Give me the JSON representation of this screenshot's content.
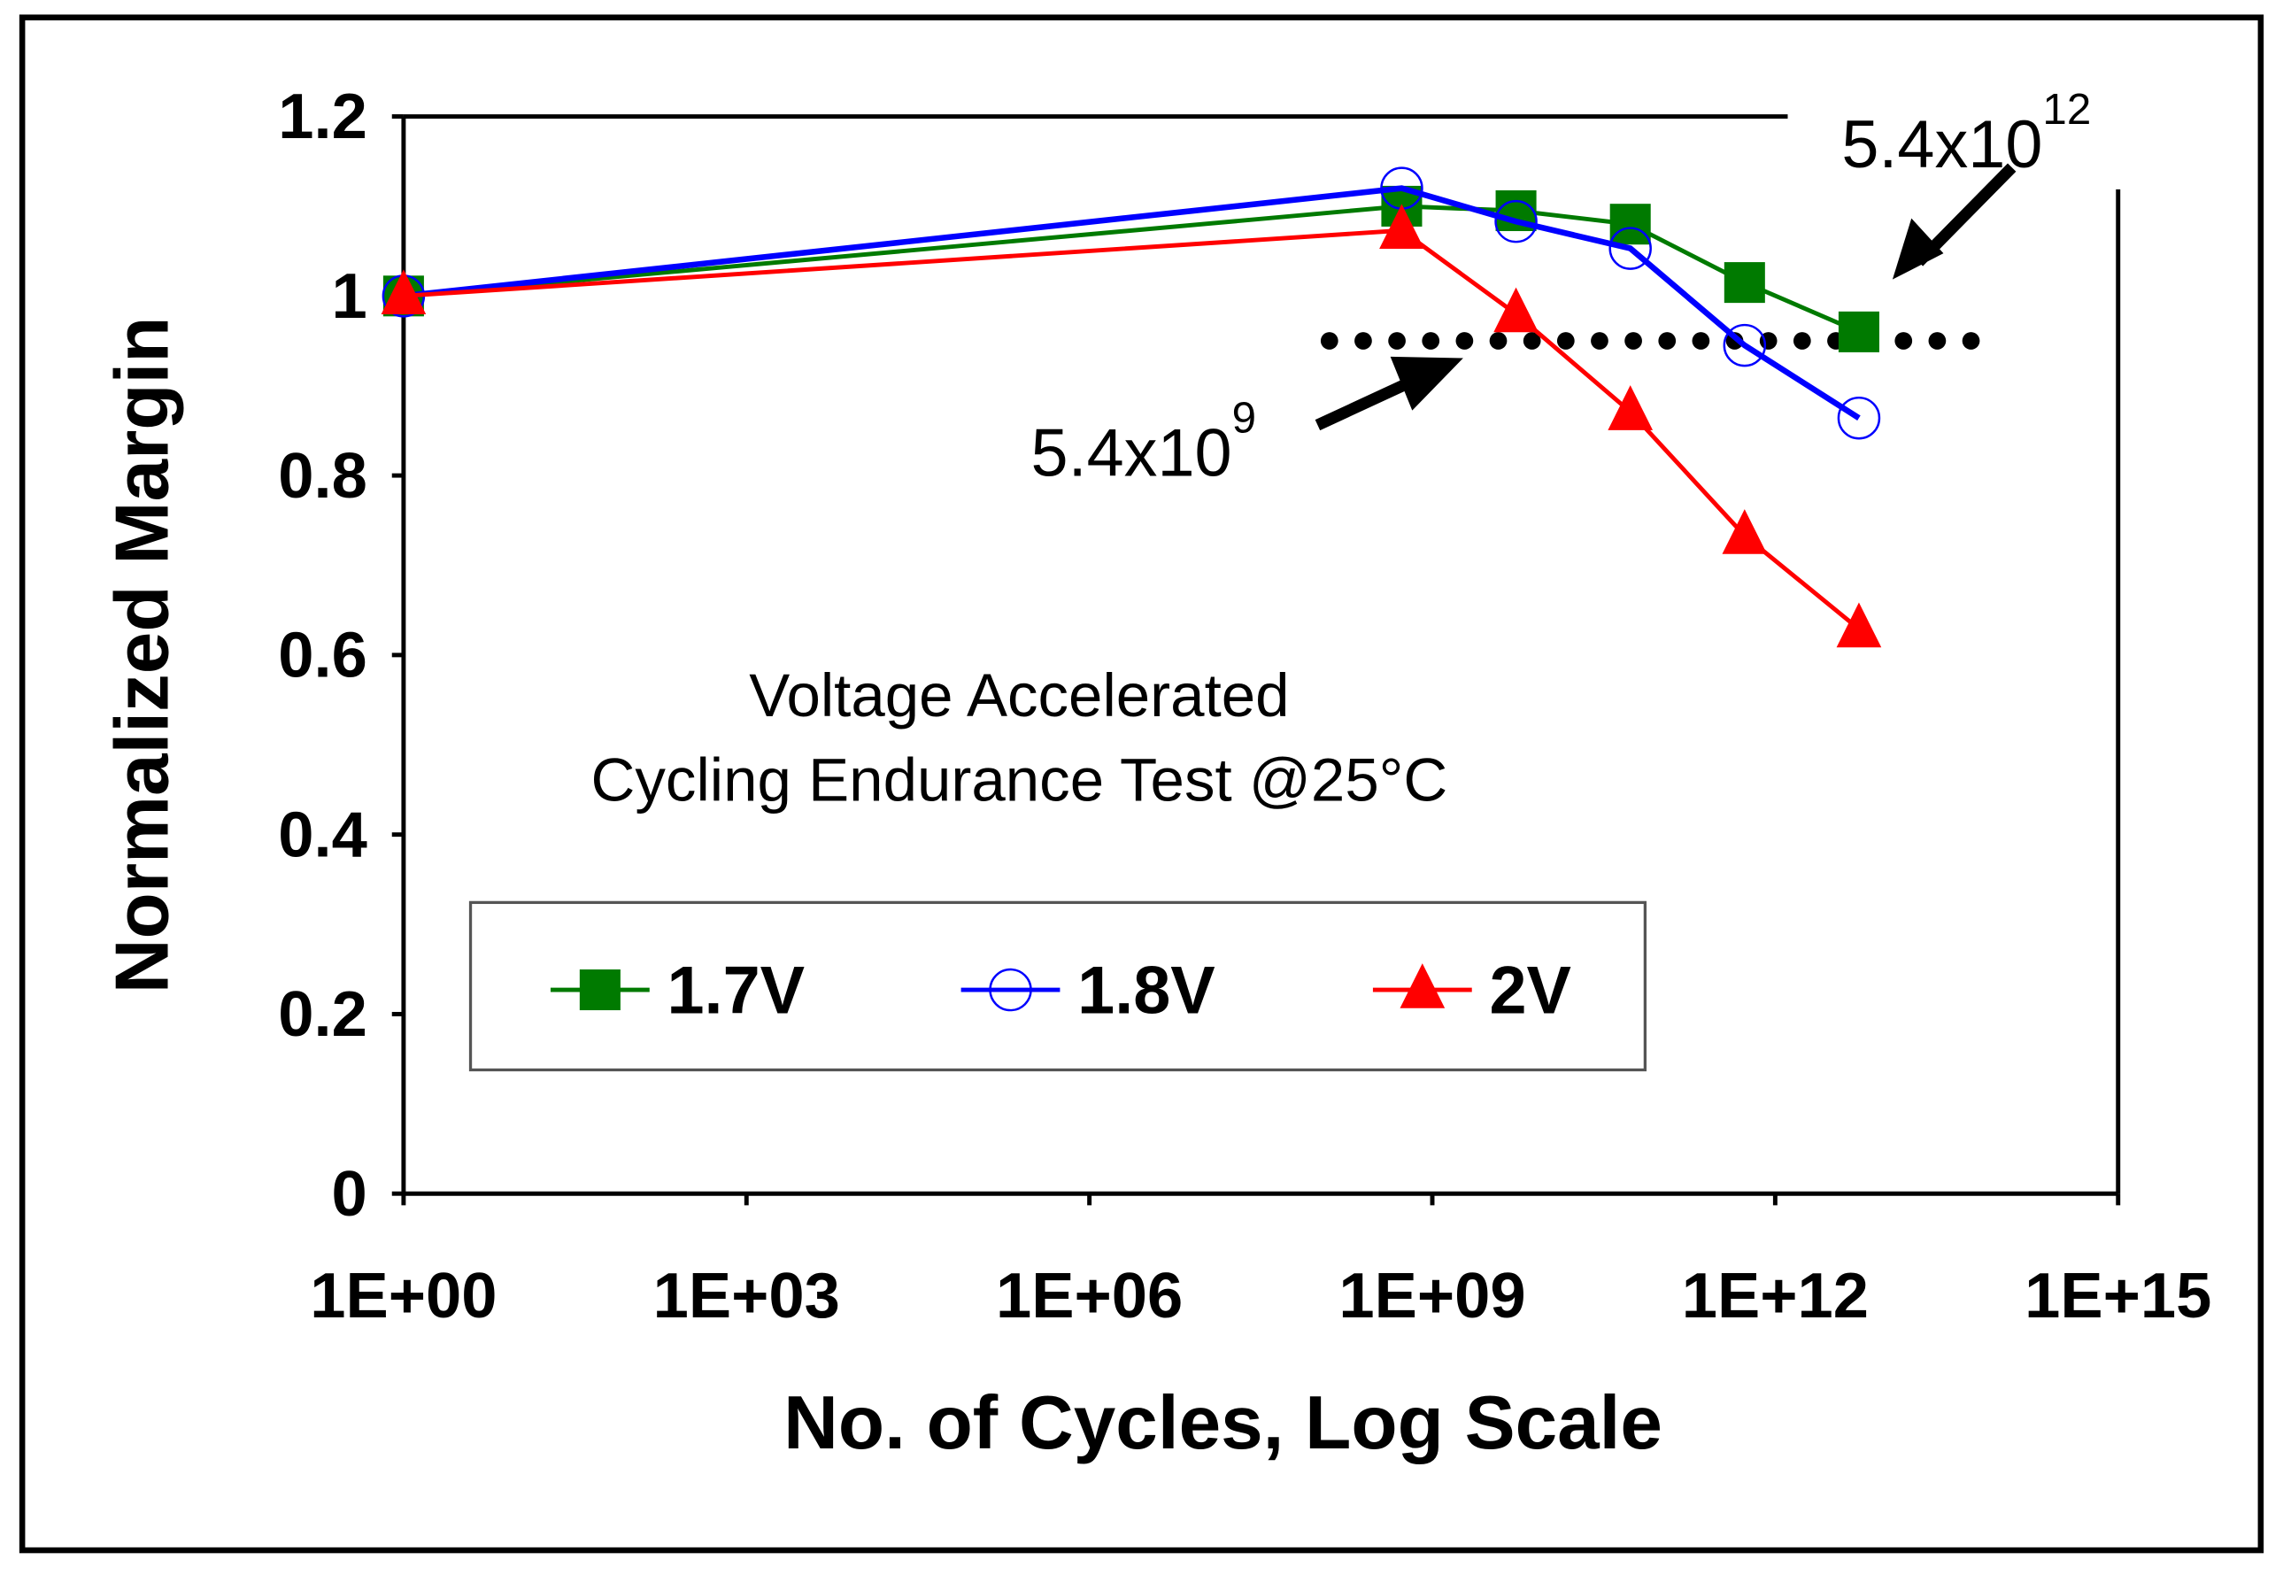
{
  "chart_data": {
    "type": "line",
    "title": "",
    "annotation_title": [
      "Voltage Accelerated",
      "Cycling Endurance Test @25°C"
    ],
    "xlabel": "No. of Cycles, Log Scale",
    "ylabel": "Normalized Margin",
    "xscale": "log",
    "xlim_log10": [
      0,
      15
    ],
    "ylim": [
      0,
      1.2
    ],
    "xticks": [
      "1E+00",
      "1E+03",
      "1E+06",
      "1E+09",
      "1E+12",
      "1E+15"
    ],
    "yticks": [
      "0",
      "0.2",
      "0.4",
      "0.6",
      "0.8",
      "1",
      "1.2"
    ],
    "x": [
      1,
      540000000.0,
      5400000000.0,
      54000000000.0,
      540000000000.0,
      5400000000000.0
    ],
    "series": [
      {
        "name": "1.7V",
        "color": "#007a00",
        "marker": "square",
        "values": [
          1.0,
          1.1,
          1.095,
          1.08,
          1.015,
          0.96
        ]
      },
      {
        "name": "1.8V",
        "color": "#0000ff",
        "marker": "open-circle",
        "values": [
          1.0,
          1.12,
          1.083,
          1.053,
          0.945,
          0.864
        ]
      },
      {
        "name": "2V",
        "color": "#ff0000",
        "marker": "triangle",
        "values": [
          1.0,
          1.073,
          0.98,
          0.871,
          0.733,
          0.629
        ]
      }
    ],
    "threshold": {
      "value": 0.95,
      "x_from_log10": 8.1,
      "x_to_log10": 14.0,
      "style": "dotted"
    },
    "annotations": [
      {
        "base": "5.4x10",
        "exp": "9"
      },
      {
        "base": "5.4x10",
        "exp": "12"
      }
    ],
    "legend_placement": "lower-center",
    "grid": false
  }
}
